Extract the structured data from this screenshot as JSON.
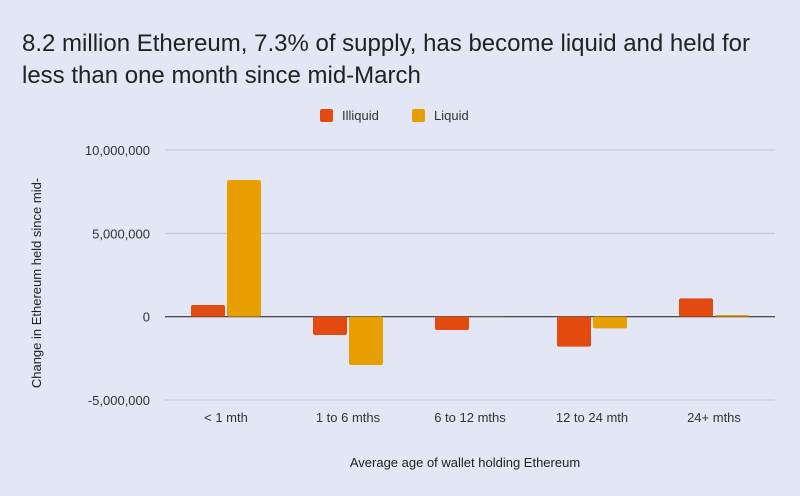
{
  "chart_data": {
    "type": "bar",
    "title": "8.2 million Ethereum, 7.3% of supply, has become liquid and held for less than one month since mid-March",
    "xlabel": "Average age of wallet holding Ethereum",
    "ylabel": "Change in Ethereum held since mid-",
    "categories": [
      "< 1 mth",
      "1 to 6 mths",
      "6 to 12 mths",
      "12 to 24 mth",
      "24+ mths"
    ],
    "series": [
      {
        "name": "Illiquid",
        "color": "#e34a0f",
        "values": [
          700000,
          -1100000,
          -800000,
          -1800000,
          1100000
        ]
      },
      {
        "name": "Liquid",
        "color": "#e8a000",
        "values": [
          8200000,
          -2900000,
          0,
          -700000,
          100000
        ]
      }
    ],
    "yticks": [
      10000000,
      5000000,
      0,
      -5000000
    ],
    "ytick_labels": [
      "10,000,000",
      "5,000,000",
      "0",
      "-5,000,000"
    ],
    "ylim": [
      -5000000,
      10000000
    ],
    "grid": true,
    "legend_position": "top"
  }
}
